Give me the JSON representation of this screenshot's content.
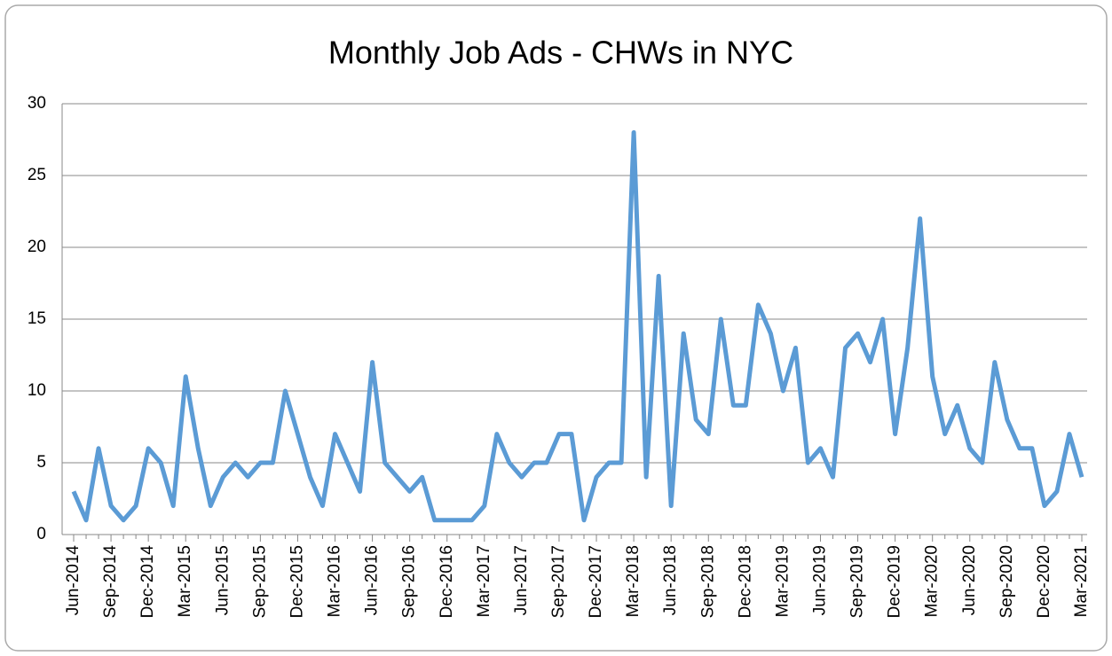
{
  "chart_data": {
    "type": "line",
    "title": "Monthly Job Ads - CHWs in NYC",
    "categories": [
      "Jun-2014",
      null,
      null,
      "Sep-2014",
      null,
      null,
      "Dec-2014",
      null,
      null,
      "Mar-2015",
      null,
      null,
      "Jun-2015",
      null,
      null,
      "Sep-2015",
      null,
      null,
      "Dec-2015",
      null,
      null,
      "Mar-2016",
      null,
      null,
      "Jun-2016",
      null,
      null,
      "Sep-2016",
      null,
      null,
      "Dec-2016",
      null,
      null,
      "Mar-2017",
      null,
      null,
      "Jun-2017",
      null,
      null,
      "Sep-2017",
      null,
      null,
      "Dec-2017",
      null,
      null,
      "Mar-2018",
      null,
      null,
      "Jun-2018",
      null,
      null,
      "Sep-2018",
      null,
      null,
      "Dec-2018",
      null,
      null,
      "Mar-2019",
      null,
      null,
      "Jun-2019",
      null,
      null,
      "Sep-2019",
      null,
      null,
      "Dec-2019",
      null,
      null,
      "Mar-2020",
      null,
      null,
      "Jun-2020",
      null,
      null,
      "Sep-2020",
      null,
      null,
      "Dec-2020",
      null,
      null,
      "Mar-2021"
    ],
    "series": [
      {
        "color": "#5b9bd5",
        "values": [
          3,
          1,
          6,
          2,
          1,
          2,
          6,
          5,
          2,
          11,
          6,
          2,
          4,
          5,
          4,
          5,
          5,
          10,
          7,
          4,
          2,
          7,
          5,
          3,
          12,
          5,
          4,
          3,
          4,
          1,
          1,
          1,
          1,
          2,
          7,
          5,
          4,
          5,
          5,
          7,
          7,
          1,
          4,
          5,
          5,
          28,
          4,
          18,
          2,
          14,
          8,
          7,
          15,
          9,
          9,
          16,
          14,
          10,
          13,
          5,
          6,
          4,
          13,
          14,
          12,
          15,
          7,
          13,
          22,
          11,
          7,
          9,
          6,
          5,
          12,
          8,
          6,
          6,
          2,
          3,
          7,
          4
        ]
      }
    ],
    "ylim": [
      0,
      30
    ],
    "yticks": [
      0,
      5,
      10,
      15,
      20,
      25,
      30
    ],
    "grid": true
  }
}
